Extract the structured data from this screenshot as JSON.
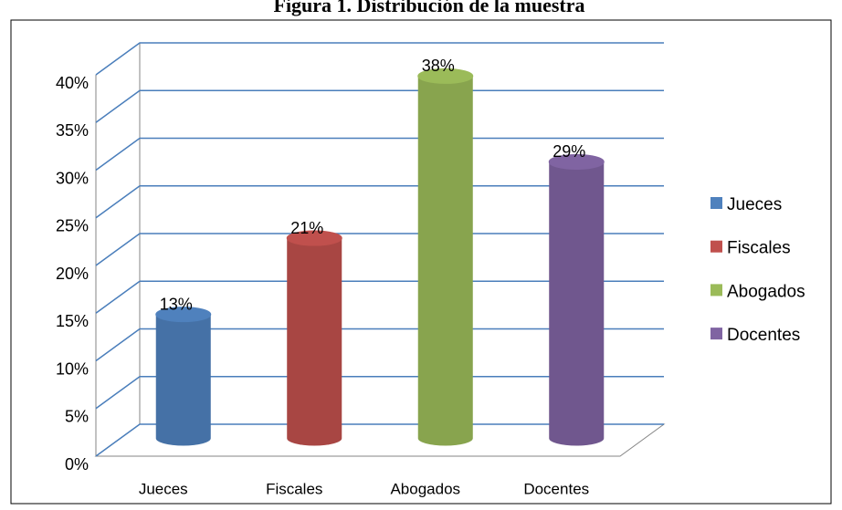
{
  "chart_data": {
    "type": "bar3d",
    "title": "Figura 1. Distribución de la muestra",
    "categories": [
      "Jueces",
      "Fiscales",
      "Abogados",
      "Docentes"
    ],
    "values": [
      13,
      21,
      38,
      29
    ],
    "value_labels": [
      "13%",
      "21%",
      "38%",
      "29%"
    ],
    "colors": [
      "#4f81bd",
      "#c0504d",
      "#9bbb59",
      "#8064a2"
    ],
    "ylim": [
      0,
      40
    ],
    "yticks": [
      {
        "value": 0,
        "label": "0%"
      },
      {
        "value": 5,
        "label": "5%"
      },
      {
        "value": 10,
        "label": "10%"
      },
      {
        "value": 15,
        "label": "15%"
      },
      {
        "value": 20,
        "label": "20%"
      },
      {
        "value": 25,
        "label": "25%"
      },
      {
        "value": 30,
        "label": "30%"
      },
      {
        "value": 35,
        "label": "35%"
      },
      {
        "value": 40,
        "label": "40%"
      }
    ],
    "grid": true,
    "legend": "right"
  }
}
